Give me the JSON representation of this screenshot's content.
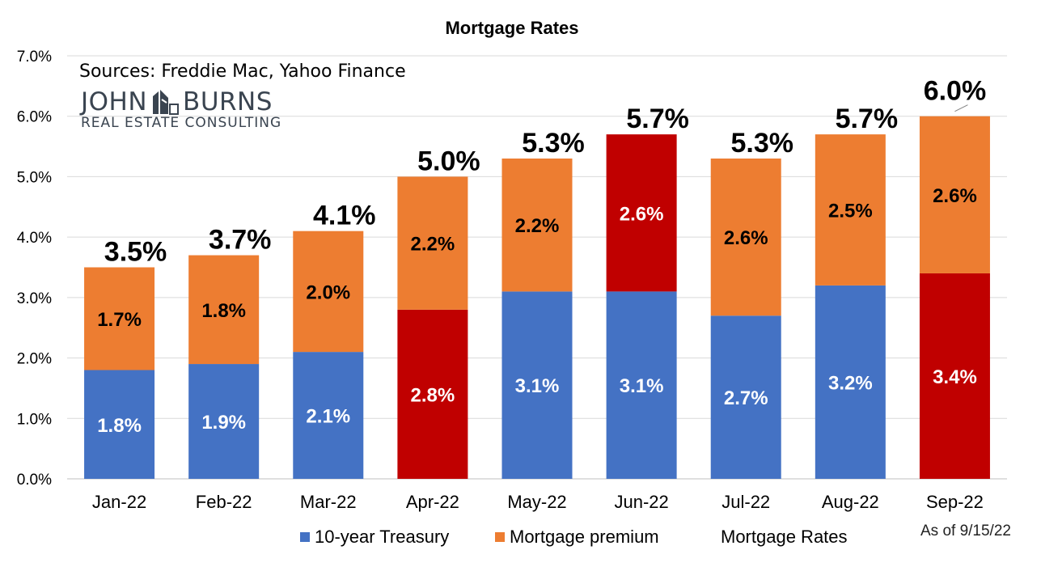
{
  "chart_data": {
    "type": "bar",
    "stacked": true,
    "title": "Mortgage Rates",
    "categories": [
      "Jan-22",
      "Feb-22",
      "Mar-22",
      "Apr-22",
      "May-22",
      "Jun-22",
      "Jul-22",
      "Aug-22",
      "Sep-22"
    ],
    "series": [
      {
        "name": "10-year Treasury",
        "color": "#4472C4",
        "values": [
          1.8,
          1.9,
          2.1,
          2.8,
          3.1,
          3.1,
          2.7,
          3.2,
          3.4
        ],
        "labels": [
          "1.8%",
          "1.9%",
          "2.1%",
          "2.8%",
          "3.1%",
          "3.1%",
          "2.7%",
          "3.2%",
          "3.4%"
        ],
        "highlight": [
          false,
          false,
          false,
          true,
          false,
          false,
          false,
          false,
          true
        ]
      },
      {
        "name": "Mortgage premium",
        "color": "#ED7D31",
        "values": [
          1.7,
          1.8,
          2.0,
          2.2,
          2.2,
          2.6,
          2.6,
          2.5,
          2.6
        ],
        "labels": [
          "1.7%",
          "1.8%",
          "2.0%",
          "2.2%",
          "2.2%",
          "2.6%",
          "2.6%",
          "2.5%",
          "2.6%"
        ],
        "highlight": [
          false,
          false,
          false,
          false,
          false,
          true,
          false,
          false,
          false
        ]
      }
    ],
    "highlight_color": "#C00000",
    "totals": {
      "name": "Mortgage Rates",
      "values": [
        3.5,
        3.7,
        4.1,
        5.0,
        5.3,
        5.7,
        5.3,
        5.7,
        6.0
      ],
      "labels": [
        "3.5%",
        "3.7%",
        "4.1%",
        "5.0%",
        "5.3%",
        "5.7%",
        "5.3%",
        "5.7%",
        "6.0%"
      ]
    },
    "ylim": [
      0,
      7
    ],
    "yticks": [
      "0.0%",
      "1.0%",
      "2.0%",
      "3.0%",
      "4.0%",
      "5.0%",
      "6.0%",
      "7.0%"
    ],
    "grid": true,
    "legend_position": "bottom"
  },
  "annotations": {
    "sources": "Sources: Freddie Mac, Yahoo Finance",
    "as_of": "As of 9/15/22"
  },
  "logo": {
    "line1_left": "JOHN",
    "line1_right": "BURNS",
    "line2": "REAL ESTATE CONSULTING"
  }
}
